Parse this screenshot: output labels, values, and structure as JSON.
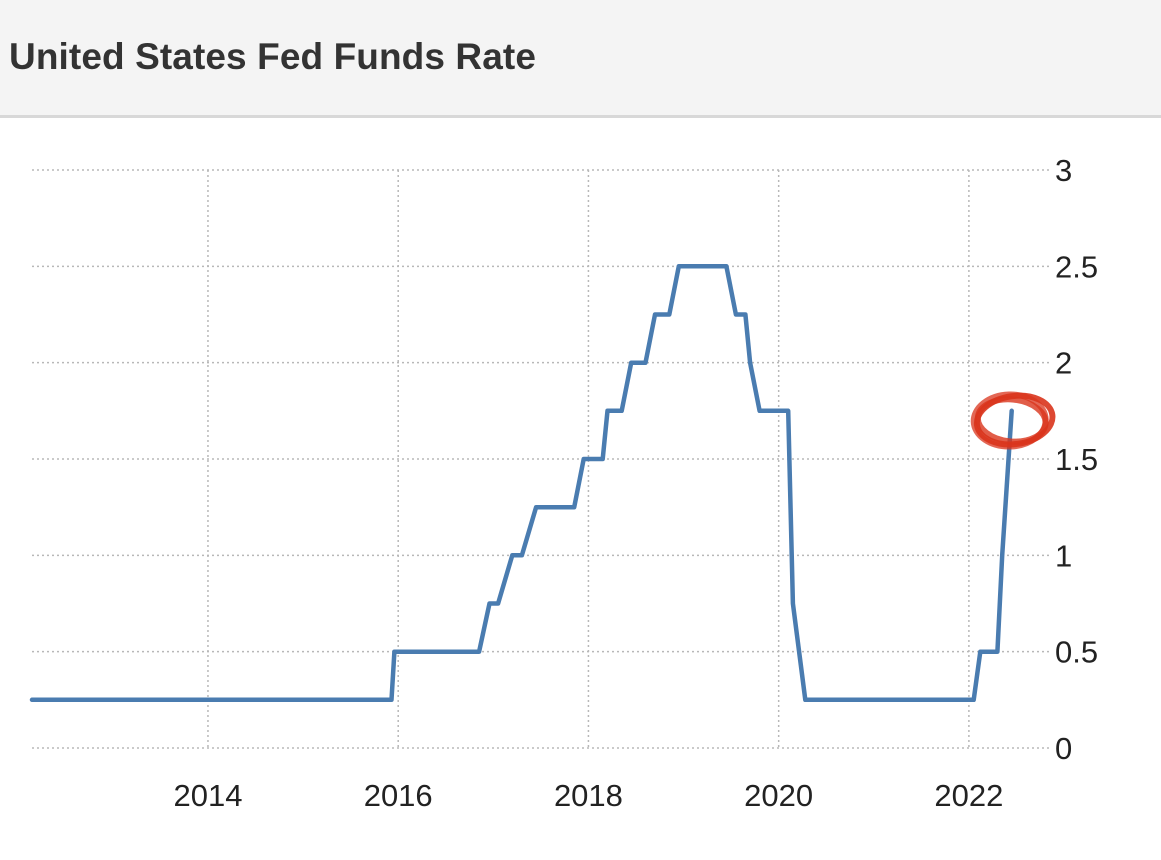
{
  "header": {
    "title": "United States Fed Funds Rate"
  },
  "chart_data": {
    "type": "line",
    "title": "United States Fed Funds Rate",
    "xlabel": "",
    "ylabel": "",
    "x_ticks": [
      "2014",
      "2016",
      "2018",
      "2020",
      "2022"
    ],
    "y_ticks": [
      "0",
      "0.5",
      "1",
      "1.5",
      "2",
      "2.5",
      "3"
    ],
    "xlim": [
      2012.15,
      2022.8
    ],
    "ylim": [
      0,
      3
    ],
    "y_axis_position": "right",
    "grid": true,
    "series": [
      {
        "color": "#4a7cb0",
        "x": [
          2012.15,
          2015.93,
          2015.96,
          2016.85,
          2016.96,
          2017.05,
          2017.2,
          2017.3,
          2017.45,
          2017.85,
          2017.95,
          2018.15,
          2018.2,
          2018.35,
          2018.45,
          2018.6,
          2018.7,
          2018.85,
          2018.95,
          2019.1,
          2019.45,
          2019.55,
          2019.65,
          2019.7,
          2019.8,
          2020.1,
          2020.15,
          2020.28,
          2022.05,
          2022.12,
          2022.3,
          2022.35,
          2022.45
        ],
        "y": [
          0.25,
          0.25,
          0.5,
          0.5,
          0.75,
          0.75,
          1.0,
          1.0,
          1.25,
          1.25,
          1.5,
          1.5,
          1.75,
          1.75,
          2.0,
          2.0,
          2.25,
          2.25,
          2.5,
          2.5,
          2.5,
          2.25,
          2.25,
          2.0,
          1.75,
          1.75,
          0.75,
          0.25,
          0.25,
          0.5,
          0.5,
          1.0,
          1.75
        ]
      }
    ],
    "annotations": [
      {
        "type": "hand-drawn-circle",
        "color": "#d9341c",
        "x": 2022.45,
        "y": 1.7
      }
    ]
  }
}
